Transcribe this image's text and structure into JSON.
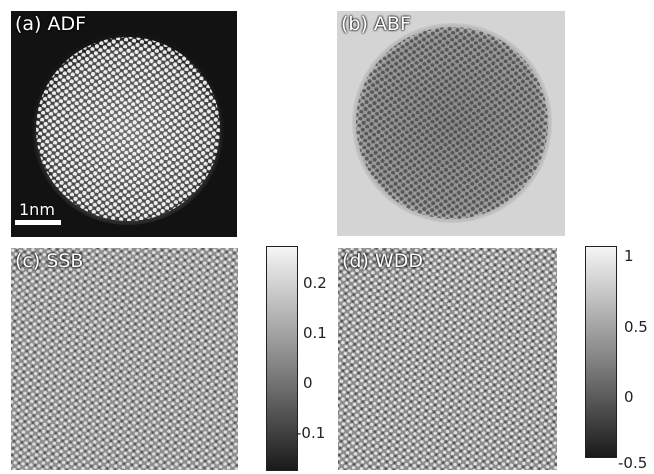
{
  "panels": {
    "a": {
      "label": "(a) ADF",
      "scale_label": "1nm"
    },
    "b": {
      "label": "(b) ABF"
    },
    "c": {
      "label": "(c) SSB"
    },
    "d": {
      "label": "(d) WDD"
    }
  },
  "colorbars": {
    "ssb": {
      "ticks": [
        "0.2",
        "0.1",
        "0",
        "-0.1"
      ]
    },
    "wdd": {
      "ticks": [
        "1",
        "0.5",
        "0",
        "-0.5"
      ]
    }
  }
}
